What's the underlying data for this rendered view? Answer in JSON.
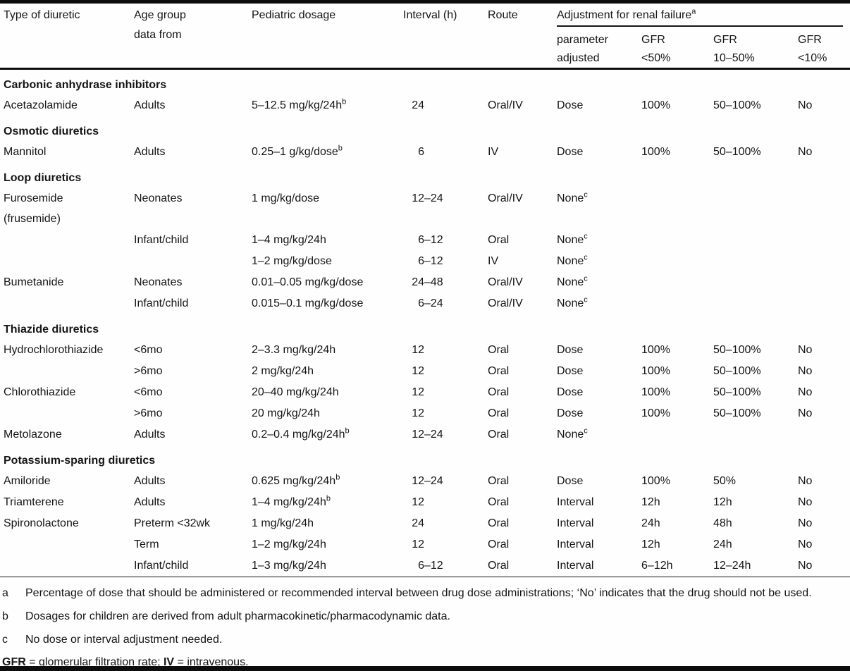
{
  "table": {
    "header": {
      "type": "Type of diuretic",
      "age_l1": "Age group",
      "age_l2": "data from",
      "dosage": "Pediatric dosage",
      "interval": "Interval (h)",
      "route": "Route",
      "renal_group": "Adjustment for renal failure",
      "renal_group_sup": "a",
      "sub": [
        {
          "l1": "parameter",
          "l2": "adjusted"
        },
        {
          "l1": "GFR",
          "l2": "<50%"
        },
        {
          "l1": "GFR",
          "l2": "10–50%"
        },
        {
          "l1": "GFR",
          "l2": "<10%"
        }
      ]
    },
    "sections": [
      {
        "title": "Carbonic anhydrase inhibitors",
        "rows": [
          {
            "drug": "Acetazolamide",
            "drug2": "",
            "age": "Adults",
            "dosage": "5–12.5 mg/kg/24h",
            "dosage_sup": "b",
            "int_lo": "24",
            "int_hi": "",
            "route": "Oral/IV",
            "param": "Dose",
            "param_sup": "",
            "gfr_lt50": "100%",
            "gfr_10_50": "50–100%",
            "gfr_lt10": "No"
          }
        ]
      },
      {
        "title": "Osmotic diuretics",
        "rows": [
          {
            "drug": "Mannitol",
            "drug2": "",
            "age": "Adults",
            "dosage": "0.25–1 g/kg/dose",
            "dosage_sup": "b",
            "int_lo": "6",
            "int_hi": "",
            "route": "IV",
            "param": "Dose",
            "param_sup": "",
            "gfr_lt50": "100%",
            "gfr_10_50": "50–100%",
            "gfr_lt10": "No"
          }
        ]
      },
      {
        "title": "Loop diuretics",
        "rows": [
          {
            "drug": "Furosemide",
            "drug2": "(frusemide)",
            "age": "Neonates",
            "dosage": "1 mg/kg/dose",
            "dosage_sup": "",
            "int_lo": "12",
            "int_hi": "–24",
            "route": "Oral/IV",
            "param": "None",
            "param_sup": "c",
            "gfr_lt50": "",
            "gfr_10_50": "",
            "gfr_lt10": ""
          },
          {
            "drug": "",
            "drug2": "",
            "age": "Infant/child",
            "dosage": "1–4 mg/kg/24h",
            "dosage_sup": "",
            "int_lo": "6",
            "int_hi": "–12",
            "route": "Oral",
            "param": "None",
            "param_sup": "c",
            "gfr_lt50": "",
            "gfr_10_50": "",
            "gfr_lt10": ""
          },
          {
            "drug": "",
            "drug2": "",
            "age": "",
            "dosage": "1–2 mg/kg/dose",
            "dosage_sup": "",
            "int_lo": "6",
            "int_hi": "–12",
            "route": "IV",
            "param": "None",
            "param_sup": "c",
            "gfr_lt50": "",
            "gfr_10_50": "",
            "gfr_lt10": ""
          },
          {
            "drug": "Bumetanide",
            "drug2": "",
            "age": "Neonates",
            "dosage": "0.01–0.05 mg/kg/dose",
            "dosage_sup": "",
            "int_lo": "24",
            "int_hi": "–48",
            "route": "Oral/IV",
            "param": "None",
            "param_sup": "c",
            "gfr_lt50": "",
            "gfr_10_50": "",
            "gfr_lt10": ""
          },
          {
            "drug": "",
            "drug2": "",
            "age": "Infant/child",
            "dosage": "0.015–0.1 mg/kg/dose",
            "dosage_sup": "",
            "int_lo": "6",
            "int_hi": "–24",
            "route": "Oral/IV",
            "param": "None",
            "param_sup": "c",
            "gfr_lt50": "",
            "gfr_10_50": "",
            "gfr_lt10": ""
          }
        ]
      },
      {
        "title": "Thiazide diuretics",
        "rows": [
          {
            "drug": "Hydrochlorothiazide",
            "drug2": "",
            "age": "<6mo",
            "dosage": "2–3.3 mg/kg/24h",
            "dosage_sup": "",
            "int_lo": "12",
            "int_hi": "",
            "route": "Oral",
            "param": "Dose",
            "param_sup": "",
            "gfr_lt50": "100%",
            "gfr_10_50": "50–100%",
            "gfr_lt10": "No"
          },
          {
            "drug": "",
            "drug2": "",
            "age": ">6mo",
            "dosage": "2 mg/kg/24h",
            "dosage_sup": "",
            "int_lo": "12",
            "int_hi": "",
            "route": "Oral",
            "param": "Dose",
            "param_sup": "",
            "gfr_lt50": "100%",
            "gfr_10_50": "50–100%",
            "gfr_lt10": "No"
          },
          {
            "drug": "Chlorothiazide",
            "drug2": "",
            "age": "<6mo",
            "dosage": "20–40 mg/kg/24h",
            "dosage_sup": "",
            "int_lo": "12",
            "int_hi": "",
            "route": "Oral",
            "param": "Dose",
            "param_sup": "",
            "gfr_lt50": "100%",
            "gfr_10_50": "50–100%",
            "gfr_lt10": "No"
          },
          {
            "drug": "",
            "drug2": "",
            "age": ">6mo",
            "dosage": "20 mg/kg/24h",
            "dosage_sup": "",
            "int_lo": "12",
            "int_hi": "",
            "route": "Oral",
            "param": "Dose",
            "param_sup": "",
            "gfr_lt50": "100%",
            "gfr_10_50": "50–100%",
            "gfr_lt10": "No"
          },
          {
            "drug": "Metolazone",
            "drug2": "",
            "age": "Adults",
            "dosage": "0.2–0.4 mg/kg/24h",
            "dosage_sup": "b",
            "int_lo": "12",
            "int_hi": "–24",
            "route": "Oral",
            "param": "None",
            "param_sup": "c",
            "gfr_lt50": "",
            "gfr_10_50": "",
            "gfr_lt10": ""
          }
        ]
      },
      {
        "title": "Potassium-sparing diuretics",
        "rows": [
          {
            "drug": "Amiloride",
            "drug2": "",
            "age": "Adults",
            "dosage": "0.625 mg/kg/24h",
            "dosage_sup": "b",
            "int_lo": "12",
            "int_hi": "–24",
            "route": "Oral",
            "param": "Dose",
            "param_sup": "",
            "gfr_lt50": "100%",
            "gfr_10_50": "50%",
            "gfr_lt10": "No"
          },
          {
            "drug": "Triamterene",
            "drug2": "",
            "age": "Adults",
            "dosage": "1–4 mg/kg/24h",
            "dosage_sup": "b",
            "int_lo": "12",
            "int_hi": "",
            "route": "Oral",
            "param": "Interval",
            "param_sup": "",
            "gfr_lt50": "12h",
            "gfr_10_50": "12h",
            "gfr_lt10": "No"
          },
          {
            "drug": "Spironolactone",
            "drug2": "",
            "age": "Preterm <32wk",
            "dosage": "1 mg/kg/24h",
            "dosage_sup": "",
            "int_lo": "24",
            "int_hi": "",
            "route": "Oral",
            "param": "Interval",
            "param_sup": "",
            "gfr_lt50": "24h",
            "gfr_10_50": "48h",
            "gfr_lt10": "No"
          },
          {
            "drug": "",
            "drug2": "",
            "age": "Term",
            "dosage": "1–2 mg/kg/24h",
            "dosage_sup": "",
            "int_lo": "12",
            "int_hi": "",
            "route": "Oral",
            "param": "Interval",
            "param_sup": "",
            "gfr_lt50": "12h",
            "gfr_10_50": "24h",
            "gfr_lt10": "No"
          },
          {
            "drug": "",
            "drug2": "",
            "age": "Infant/child",
            "dosage": "1–3 mg/kg/24h",
            "dosage_sup": "",
            "int_lo": "6",
            "int_hi": "–12",
            "route": "Oral",
            "param": "Interval",
            "param_sup": "",
            "gfr_lt50": "6–12h",
            "gfr_10_50": "12–24h",
            "gfr_lt10": "No"
          }
        ]
      }
    ],
    "footnotes": [
      {
        "marker": "a",
        "text": "Percentage of dose that should be administered or recommended interval between drug dose administrations; ‘No’ indicates that the drug should not be used."
      },
      {
        "marker": "b",
        "text": "Dosages for children are derived from adult pharmacokinetic/pharmacodynamic data."
      },
      {
        "marker": "c",
        "text": "No dose or interval adjustment needed."
      }
    ],
    "abbreviations": {
      "gfr_abbr": "GFR",
      "gfr_def": " = glomerular filtration rate; ",
      "iv_abbr": "IV",
      "iv_def": " = intravenous."
    }
  }
}
